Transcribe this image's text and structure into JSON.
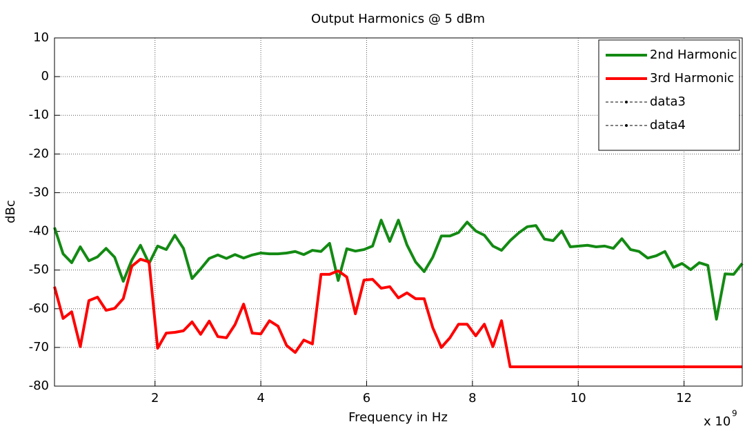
{
  "chart_data": {
    "type": "line",
    "title": "Output Harmonics @ 5 dBm",
    "x_label": "Frequency in Hz",
    "y_label": "dBc",
    "x_multiplier": {
      "base": "x 10",
      "exponent": "9"
    },
    "xlim": [
      0.1,
      13.1
    ],
    "ylim": [
      -80,
      10
    ],
    "xticks": [
      2,
      4,
      6,
      8,
      10,
      12
    ],
    "yticks": [
      -80,
      -70,
      -60,
      -50,
      -40,
      -30,
      -20,
      -10,
      0,
      10
    ],
    "grid": true,
    "legend": "upper right",
    "x": [
      0.1,
      0.2625,
      0.425,
      0.5875,
      0.75,
      0.9125,
      1.075,
      1.2375,
      1.4,
      1.5625,
      1.725,
      1.8875,
      2.05,
      2.2125,
      2.375,
      2.5375,
      2.7,
      2.8625,
      3.025,
      3.1875,
      3.35,
      3.5125,
      3.675,
      3.8375,
      4.0,
      4.1625,
      4.325,
      4.4875,
      4.65,
      4.8125,
      4.975,
      5.1375,
      5.3,
      5.4625,
      5.625,
      5.7875,
      5.95,
      6.1125,
      6.275,
      6.4375,
      6.6,
      6.7625,
      6.925,
      7.0875,
      7.25,
      7.4125,
      7.575,
      7.7375,
      7.9,
      8.0625,
      8.225,
      8.3875,
      8.55,
      8.7125,
      8.875,
      9.0375,
      9.2,
      9.3625,
      9.525,
      9.6875,
      9.85,
      10.0125,
      10.175,
      10.3375,
      10.5,
      10.6625,
      10.825,
      10.9875,
      11.15,
      11.3125,
      11.475,
      11.6375,
      11.8,
      11.9625,
      12.125,
      12.2875,
      12.45,
      12.6125,
      12.775,
      12.9375,
      13.1
    ],
    "series": [
      {
        "name": "2nd Harmonic",
        "color": "#138a13",
        "values": [
          -39,
          -45.8,
          -48.1,
          -44,
          -47.6,
          -46.6,
          -44.4,
          -46.7,
          -52.9,
          -47.4,
          -43.6,
          -48.3,
          -43.8,
          -44.7,
          -41,
          -44.4,
          -52.2,
          -49.7,
          -47,
          -46.1,
          -47,
          -46,
          -46.9,
          -46.1,
          -45.6,
          -45.8,
          -45.8,
          -45.6,
          -45.2,
          -46,
          -44.9,
          -45.2,
          -43.1,
          -52.7,
          -44.5,
          -45.1,
          -44.7,
          -43.8,
          -37.1,
          -42.6,
          -37.1,
          -43.5,
          -47.9,
          -50.4,
          -46.7,
          -41.2,
          -41.2,
          -40.3,
          -37.6,
          -39.9,
          -41,
          -43.8,
          -44.9,
          -42.4,
          -40.4,
          -38.8,
          -38.5,
          -42,
          -42.4,
          -39.9,
          -44,
          -43.8,
          -43.6,
          -44,
          -43.8,
          -44.4,
          -41.9,
          -44.7,
          -45.2,
          -46.9,
          -46.3,
          -45.2,
          -49.3,
          -48.3,
          -49.9,
          -48.1,
          -48.8,
          -62.7,
          -51,
          -51.1,
          -48.3
        ]
      },
      {
        "name": "3rd Harmonic",
        "color": "#ff0000",
        "values": [
          -54.3,
          -62.5,
          -60.8,
          -69.8,
          -57.9,
          -57,
          -60.4,
          -59.9,
          -57.4,
          -49,
          -47.2,
          -47.9,
          -70.2,
          -66.3,
          -66.1,
          -65.7,
          -63.4,
          -66.6,
          -63.2,
          -67.2,
          -67.5,
          -64.1,
          -58.8,
          -66.3,
          -66.5,
          -63.1,
          -64.5,
          -69.5,
          -71.3,
          -68.1,
          -69.1,
          -51.1,
          -51.1,
          -50.2,
          -51.8,
          -61.3,
          -52.6,
          -52.4,
          -54.7,
          -54.3,
          -57.2,
          -55.9,
          -57.4,
          -57.4,
          -64.9,
          -70,
          -67.5,
          -64,
          -64,
          -67,
          -64,
          -69.8,
          -63.1,
          -75,
          -75,
          -75,
          -75,
          -75,
          -75,
          -75,
          -75,
          -75,
          -75,
          -75,
          -75,
          -75,
          -75,
          -75,
          -75,
          -75,
          -75,
          -75,
          -75,
          -75,
          -75,
          -75,
          -75,
          -75,
          -75,
          -75,
          -75
        ]
      },
      {
        "name": "data3",
        "color": "#000000",
        "dashed": true,
        "x": [
          13.1,
          13.1
        ],
        "values": [
          -80,
          10
        ]
      },
      {
        "name": "data4",
        "color": "#000000",
        "dashed": true,
        "x": [
          13.1,
          13.1
        ],
        "values": [
          -80,
          10
        ]
      }
    ]
  }
}
